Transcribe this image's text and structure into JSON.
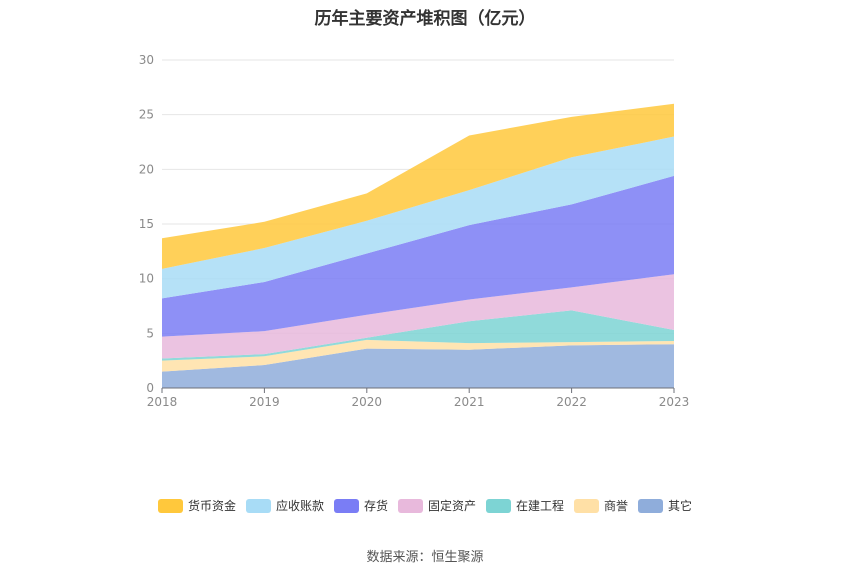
{
  "title": "历年主要资产堆积图（亿元）",
  "source_label": "数据来源：",
  "source_name": "恒生聚源",
  "colors": {
    "货币资金": "#ffc83c",
    "应收账款": "#a8dcf6",
    "存货": "#7a7df5",
    "固定资产": "#e8b9dc",
    "在建工程": "#7dd4d4",
    "商誉": "#ffe0a6",
    "其它": "#8faddb"
  },
  "chart_data": {
    "type": "area",
    "stacked": true,
    "x": [
      "2018",
      "2019",
      "2020",
      "2021",
      "2022",
      "2023"
    ],
    "ylim": [
      0,
      30
    ],
    "yticks": [
      0,
      5,
      10,
      15,
      20,
      25,
      30
    ],
    "grid": true,
    "legend_position": "bottom",
    "legend_order": [
      "货币资金",
      "应收账款",
      "存货",
      "固定资产",
      "在建工程",
      "商誉",
      "其它"
    ],
    "series": [
      {
        "name": "其它",
        "values": [
          1.5,
          2.1,
          3.6,
          3.5,
          3.9,
          4.0
        ]
      },
      {
        "name": "商誉",
        "values": [
          1.0,
          0.8,
          0.8,
          0.6,
          0.3,
          0.3
        ]
      },
      {
        "name": "在建工程",
        "values": [
          0.2,
          0.2,
          0.2,
          2.0,
          2.9,
          1.0
        ]
      },
      {
        "name": "固定资产",
        "values": [
          2.0,
          2.1,
          2.1,
          2.0,
          2.1,
          5.1
        ]
      },
      {
        "name": "存货",
        "values": [
          3.5,
          4.5,
          5.6,
          6.8,
          7.6,
          9.0
        ]
      },
      {
        "name": "应收账款",
        "values": [
          2.7,
          3.1,
          3.0,
          3.2,
          4.3,
          3.6
        ]
      },
      {
        "name": "货币资金",
        "values": [
          2.8,
          2.4,
          2.5,
          5.0,
          3.7,
          3.0
        ]
      }
    ]
  }
}
